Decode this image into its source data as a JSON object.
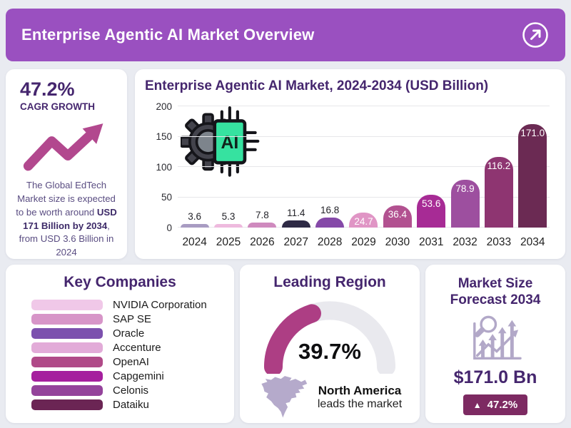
{
  "header": {
    "title": "Enterprise Agentic AI Market Overview",
    "action_icon": "arrow-up-right-icon"
  },
  "colors": {
    "header_purple": "#9a50c0",
    "heading_purple": "#45266e",
    "accent_magenta": "#b2488e",
    "gauge_fill": "#ad3e84",
    "gauge_track": "#e9e9ee",
    "badge_plum": "#7d2a62",
    "icon_lavender": "#b2a8c8"
  },
  "cagr_panel": {
    "value": "47.2%",
    "label": "CAGR GROWTH",
    "desc_before": "The Global EdTech Market size is expected to be worth around ",
    "desc_bold": "USD 171 Billion by 2034",
    "desc_after": ", from USD 3.6 Billion in 2024"
  },
  "chart_panel": {
    "ai_label": "AI"
  },
  "chart_data": [
    {
      "type": "bar",
      "title": "Enterprise Agentic AI Market, 2024-2034 (USD Billion)",
      "categories": [
        "2024",
        "2025",
        "2026",
        "2027",
        "2028",
        "2029",
        "2030",
        "2031",
        "2032",
        "2033",
        "2034"
      ],
      "values": [
        3.6,
        5.3,
        7.8,
        11.4,
        16.8,
        24.7,
        36.4,
        53.6,
        78.9,
        116.2,
        171.0
      ],
      "xlabel": "",
      "ylabel": "",
      "ylim": [
        0,
        200
      ],
      "yticks": [
        0,
        50,
        100,
        150,
        200
      ],
      "grid": true,
      "legend": false,
      "bar_colors": [
        "#a89cc2",
        "#eebade",
        "#cf8abe",
        "#2e2a45",
        "#8549a8",
        "#e095c5",
        "#b25190",
        "#a72b95",
        "#9d4f9f",
        "#8e3571",
        "#6b2a53"
      ],
      "dotted_bar_indices": [
        2,
        3,
        5
      ],
      "inside_label_min": 20
    },
    {
      "type": "gauge",
      "title": "Leading Region",
      "value": 39.7,
      "max": 100,
      "label": "39.7%",
      "fill_color": "#ad3e84",
      "track_color": "#e9e9ee"
    }
  ],
  "companies_panel": {
    "title": "Key Companies",
    "items": [
      {
        "name": "NVIDIA Corporation",
        "color": "#f0c8e8",
        "dotted": false
      },
      {
        "name": "SAP SE",
        "color": "#d795c8",
        "dotted": true
      },
      {
        "name": "Oracle",
        "color": "#7c50ae",
        "dotted": false
      },
      {
        "name": "Accenture",
        "color": "#e2abd8",
        "dotted": true
      },
      {
        "name": "OpenAI",
        "color": "#b04a88",
        "dotted": false
      },
      {
        "name": "Capgemini",
        "color": "#a51f9e",
        "dotted": false
      },
      {
        "name": "Celonis",
        "color": "#94439b",
        "dotted": false
      },
      {
        "name": "Dataiku",
        "color": "#6b2554",
        "dotted": false
      }
    ]
  },
  "region_panel": {
    "title": "Leading Region",
    "percent": "39.7%",
    "region_bold": "North America",
    "region_rest": "leads the market",
    "map_icon": "north-america-map-icon"
  },
  "forecast_panel": {
    "title_line1": "Market Size",
    "title_line2": "Forecast 2034",
    "value": "$171.0 Bn",
    "badge_icon_glyph": "▲",
    "badge_text": "47.2%"
  }
}
